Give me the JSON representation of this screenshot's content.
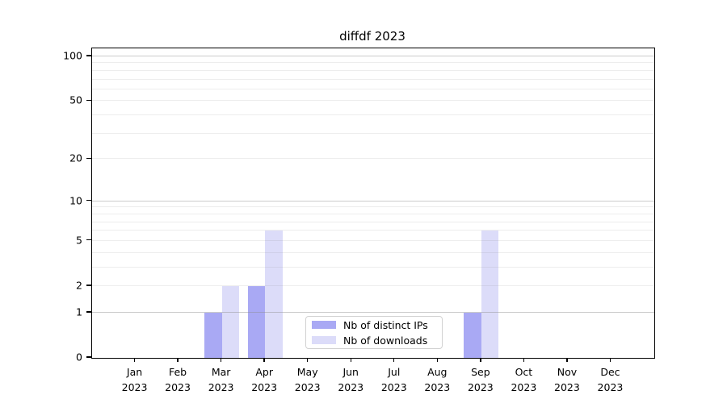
{
  "chart_data": {
    "type": "bar",
    "title": "diffdf 2023",
    "categories": [
      "Jan 2023",
      "Feb 2023",
      "Mar 2023",
      "Apr 2023",
      "May 2023",
      "Jun 2023",
      "Jul 2023",
      "Aug 2023",
      "Sep 2023",
      "Oct 2023",
      "Nov 2023",
      "Dec 2023"
    ],
    "x_months": [
      "Jan",
      "Feb",
      "Mar",
      "Apr",
      "May",
      "Jun",
      "Jul",
      "Aug",
      "Sep",
      "Oct",
      "Nov",
      "Dec"
    ],
    "x_year": "2023",
    "series": [
      {
        "name": "Nb of distinct IPs",
        "color": "#a9a9f4",
        "values": [
          0,
          0,
          1,
          2,
          0,
          0,
          0,
          0,
          1,
          0,
          0,
          0
        ]
      },
      {
        "name": "Nb of downloads",
        "color": "#dcdcf9",
        "values": [
          0,
          0,
          2,
          6,
          0,
          0,
          0,
          0,
          6,
          0,
          0,
          0
        ]
      }
    ],
    "y_axis": {
      "scale": "log1p",
      "ticks": [
        0,
        1,
        2,
        5,
        10,
        20,
        50,
        100
      ],
      "tick_labels": [
        "0",
        "1",
        "2",
        "5",
        "10",
        "20",
        "50",
        "100"
      ],
      "major_grid": [
        1,
        10,
        100
      ],
      "minor_grid": [
        2,
        3,
        4,
        5,
        6,
        7,
        8,
        9,
        20,
        30,
        40,
        50,
        60,
        70,
        80,
        90
      ],
      "top_value": 113.3,
      "ylim": [
        0,
        113.3
      ]
    },
    "grid": "on",
    "legend": {
      "position": "lower-center",
      "entries": [
        "Nb of distinct IPs",
        "Nb of downloads"
      ]
    },
    "colors": {
      "distinct_ips": "#a9a9f4",
      "downloads": "#dcdcf9",
      "spine": "#000000",
      "grid_major": "#c9c9c9",
      "grid_minor": "#e9e9e9"
    }
  }
}
